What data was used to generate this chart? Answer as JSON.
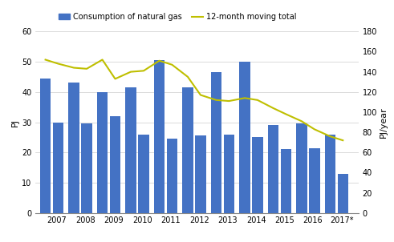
{
  "bar_x": [
    2007.1,
    2007.55,
    2008.1,
    2008.55,
    2009.1,
    2009.55,
    2010.1,
    2010.55,
    2011.1,
    2011.55,
    2012.1,
    2012.55,
    2013.1,
    2013.55,
    2014.1,
    2014.55,
    2015.1,
    2015.55,
    2016.1,
    2016.55,
    2017.1,
    2017.55
  ],
  "bar_heights": [
    44.5,
    30.0,
    43.0,
    29.5,
    40.0,
    32.0,
    41.5,
    26.0,
    50.5,
    24.5,
    41.5,
    25.5,
    46.5,
    26.0,
    50.0,
    25.0,
    29.0,
    21.0,
    29.5,
    21.5,
    26.0,
    13.0
  ],
  "bar_color": "#4472C4",
  "bar_width": 0.38,
  "line_x": [
    2007.1,
    2007.55,
    2008.1,
    2008.55,
    2009.1,
    2009.55,
    2010.1,
    2010.55,
    2011.1,
    2011.55,
    2012.1,
    2012.55,
    2013.1,
    2013.55,
    2014.1,
    2014.55,
    2015.1,
    2015.55,
    2016.1,
    2016.55,
    2017.1,
    2017.55
  ],
  "line_y": [
    152,
    148,
    144,
    143,
    152,
    133,
    140,
    141,
    151,
    147,
    135,
    117,
    112,
    111,
    114,
    112,
    104,
    98,
    91,
    83,
    76,
    72
  ],
  "line_color": "#BFBF00",
  "ylabel_left": "PJ",
  "ylabel_right": "PJ/year",
  "ylim_left": [
    0,
    60
  ],
  "ylim_right": [
    0,
    180
  ],
  "yticks_left": [
    0,
    10,
    20,
    30,
    40,
    50,
    60
  ],
  "yticks_right": [
    0,
    20,
    40,
    60,
    80,
    100,
    120,
    140,
    160,
    180
  ],
  "xtick_labels": [
    "2007",
    "2008",
    "2009",
    "2010",
    "2011",
    "2012",
    "2013",
    "2014",
    "2015",
    "2016",
    "2017*"
  ],
  "xtick_positions": [
    2007.5,
    2008.5,
    2009.5,
    2010.5,
    2011.5,
    2012.5,
    2013.5,
    2014.5,
    2015.5,
    2016.5,
    2017.5
  ],
  "legend_bar_label": "Consumption of natural gas",
  "legend_line_label": "12-month moving total",
  "xlim": [
    2006.75,
    2018.1
  ],
  "background_color": "#ffffff",
  "grid_color": "#cccccc"
}
